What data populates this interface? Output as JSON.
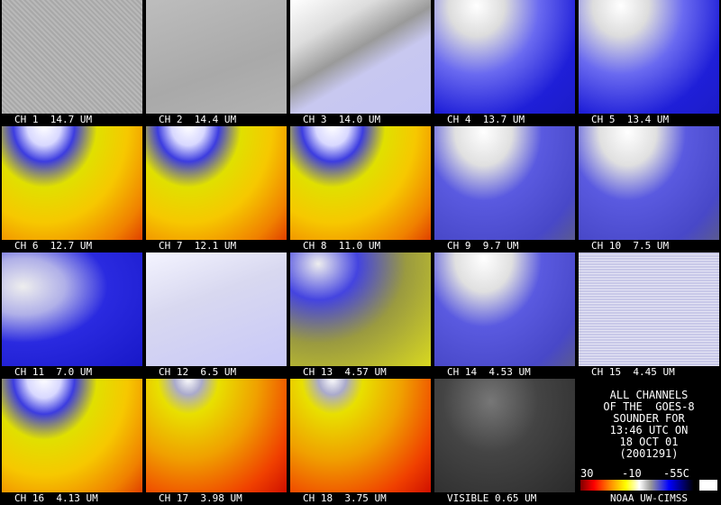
{
  "panels": [
    {
      "label": "CH 1  14.7 UM"
    },
    {
      "label": "CH 2  14.4 UM"
    },
    {
      "label": "CH 3  14.0 UM"
    },
    {
      "label": "CH 4  13.7 UM"
    },
    {
      "label": "CH 5  13.4 UM"
    },
    {
      "label": "CH 6  12.7 UM"
    },
    {
      "label": "CH 7  12.1 UM"
    },
    {
      "label": "CH 8  11.0 UM"
    },
    {
      "label": "CH 9  9.7 UM"
    },
    {
      "label": "CH 10  7.5 UM"
    },
    {
      "label": "CH 11  7.0 UM"
    },
    {
      "label": "CH 12  6.5 UM"
    },
    {
      "label": "CH 13  4.57 UM"
    },
    {
      "label": "CH 14  4.53 UM"
    },
    {
      "label": "CH 15  4.45 UM"
    },
    {
      "label": "CH 16  4.13 UM"
    },
    {
      "label": "CH 17  3.98 UM"
    },
    {
      "label": "CH 18  3.75 UM"
    },
    {
      "label": "VISIBLE 0.65 UM"
    }
  ],
  "info": {
    "lines": [
      "ALL CHANNELS",
      "OF THE  GOES-8",
      "SOUNDER FOR",
      "13:46 UTC ON",
      "18 OCT 01",
      "(2001291)"
    ],
    "colorbar_labels": [
      "30",
      "-10",
      "-55C"
    ],
    "credit": "NOAA UW-CIMSS"
  }
}
